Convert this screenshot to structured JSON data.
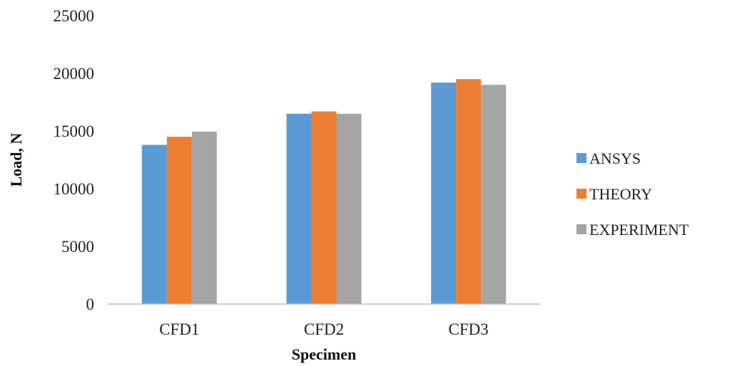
{
  "chart_data": {
    "type": "bar",
    "title": "",
    "xlabel": "Specimen",
    "ylabel": "Load, N",
    "categories": [
      "CFD1",
      "CFD2",
      "CFD3"
    ],
    "series": [
      {
        "name": "ANSYS",
        "values": [
          13800,
          16500,
          19200
        ],
        "color": "#5b9bd5"
      },
      {
        "name": "THEORY",
        "values": [
          14500,
          16700,
          19500
        ],
        "color": "#ed7d31"
      },
      {
        "name": "EXPERIMENT",
        "values": [
          14950,
          16500,
          19000
        ],
        "color": "#a5a5a5"
      }
    ],
    "ylim": [
      0,
      25000
    ],
    "yticks": [
      "0",
      "5000",
      "10000",
      "15000",
      "20000",
      "25000"
    ],
    "grid": false,
    "legend": "right"
  }
}
